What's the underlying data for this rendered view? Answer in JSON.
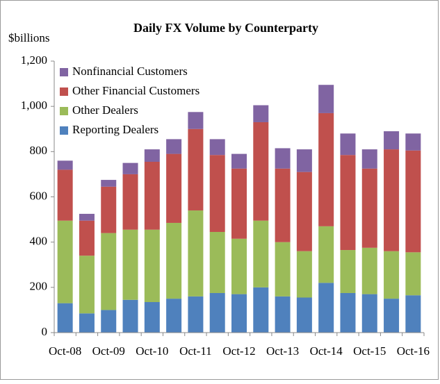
{
  "chart_data": {
    "type": "stacked_bar",
    "title": "Daily FX Volume by Counterparty",
    "y_label": "$billions",
    "categories": [
      "Oct-08",
      null,
      "Oct-09",
      null,
      "Oct-10",
      null,
      "Oct-11",
      null,
      "Oct-12",
      null,
      "Oct-13",
      null,
      "Oct-14",
      null,
      "Oct-15",
      null,
      "Oct-16"
    ],
    "series": [
      {
        "name": "Reporting Dealers",
        "color": "#4f81bd",
        "values": [
          130,
          85,
          100,
          145,
          135,
          150,
          160,
          175,
          170,
          200,
          160,
          155,
          220,
          175,
          170,
          150,
          165
        ]
      },
      {
        "name": "Other Dealers",
        "color": "#9bbb59",
        "values": [
          365,
          255,
          340,
          310,
          320,
          335,
          380,
          270,
          245,
          295,
          240,
          205,
          250,
          190,
          205,
          210,
          190
        ]
      },
      {
        "name": "Other Financial Customers",
        "color": "#c0504d",
        "values": [
          225,
          155,
          205,
          245,
          300,
          305,
          360,
          340,
          310,
          435,
          325,
          350,
          500,
          420,
          350,
          450,
          450
        ]
      },
      {
        "name": "Nonfinancial Customers",
        "color": "#8064a2",
        "values": [
          40,
          30,
          30,
          50,
          55,
          65,
          75,
          70,
          65,
          75,
          90,
          100,
          125,
          95,
          85,
          80,
          75
        ]
      }
    ],
    "ylim": [
      0,
      1200
    ],
    "yticks": [
      0,
      200,
      400,
      600,
      800,
      {
        "value": 1000,
        "label": "1,000"
      },
      {
        "value": 1200,
        "label": "1,200"
      }
    ],
    "legend": "upper left"
  }
}
